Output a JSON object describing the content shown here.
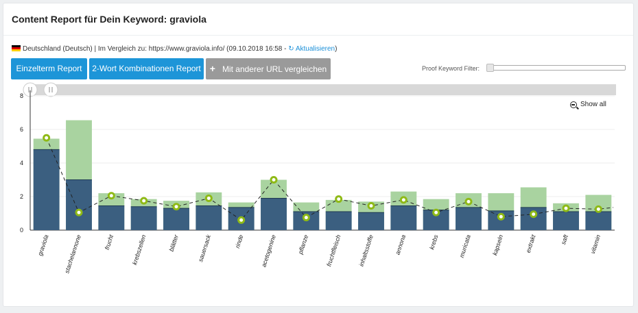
{
  "header": {
    "title": "Content Report für Dein Keyword: graviola"
  },
  "meta": {
    "country": "Deutschland (Deutsch)",
    "compare_text": " | Im Vergleich zu: https://www.graviola.info/ (09.10.2018 16:58 - ",
    "refresh_label": "Aktualisieren",
    "close_paren": ")",
    "flag_icon": "germany-flag-icon",
    "refresh_icon": "refresh-icon"
  },
  "toolbar": {
    "btn_einzelterm": "Einzelterm Report",
    "btn_2wort": "2-Wort Kombinationen Report",
    "btn_compare": "Mit anderer URL vergleichen",
    "compare_icon": "plus-icon",
    "filter_label": "Proof Keyword Filter:",
    "filter_value": 0
  },
  "chart_controls": {
    "show_all_label": "Show all",
    "show_all_icon": "zoom-out-icon"
  },
  "colors": {
    "bar_dark": "#3b5f80",
    "bar_light": "#a9d3a0",
    "marker": "#8fba16",
    "button_blue": "#1d95d8",
    "button_gray": "#9a9a9a"
  },
  "chart_data": {
    "type": "bar",
    "categories": [
      "graviola",
      "stachelannone",
      "frucht",
      "krebszellen",
      "blätter",
      "sauersack",
      "rinde",
      "acetogenine",
      "pflanze",
      "fruchtfleisch",
      "inhaltsstoffe",
      "annona",
      "krebs",
      "muricata",
      "kapseln",
      "extrakt",
      "saft",
      "vitamin"
    ],
    "series": [
      {
        "type": "bar",
        "values": [
          4.8,
          3.0,
          1.45,
          1.4,
          1.3,
          1.45,
          1.35,
          1.9,
          1.1,
          1.1,
          1.05,
          1.45,
          1.2,
          1.35,
          1.15,
          1.35,
          1.1,
          1.1
        ]
      },
      {
        "type": "bar-range",
        "values": [
          5.45,
          6.55,
          2.2,
          1.85,
          1.75,
          2.25,
          1.65,
          3.0,
          1.65,
          1.8,
          1.7,
          2.3,
          1.85,
          2.2,
          2.2,
          2.55,
          1.6,
          2.1
        ]
      },
      {
        "type": "line",
        "values": [
          5.5,
          1.05,
          2.05,
          1.75,
          1.4,
          1.9,
          0.6,
          3.0,
          0.75,
          1.85,
          1.45,
          1.8,
          1.05,
          1.7,
          0.8,
          0.95,
          1.3,
          1.25
        ]
      }
    ],
    "yticks": [
      0,
      2,
      4,
      6,
      8
    ],
    "ylim": [
      0,
      8
    ],
    "grid": true,
    "navigator": true
  }
}
